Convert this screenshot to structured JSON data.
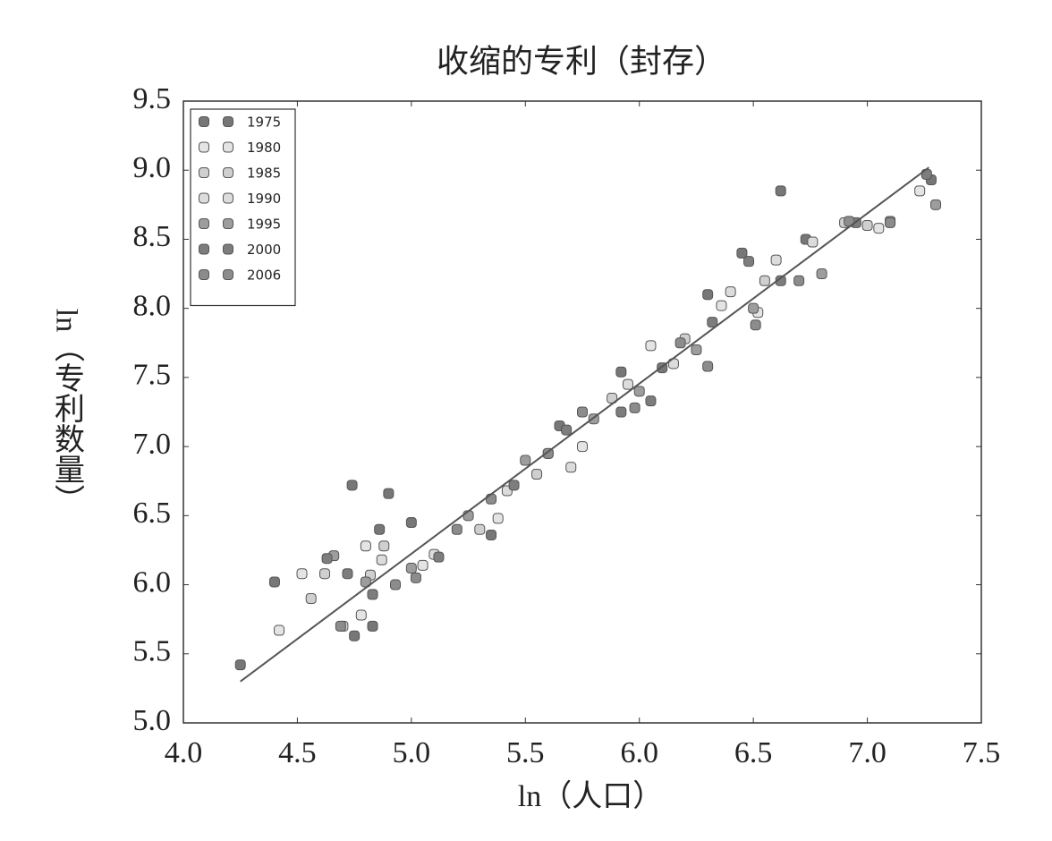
{
  "chart_data": {
    "type": "scatter",
    "title": "收缩的专利（封存）",
    "x_label": "ln（人口）",
    "y_label": "ln（专利数量）",
    "xlim": [
      4.0,
      7.5
    ],
    "ylim": [
      5.0,
      9.5
    ],
    "xticks": [
      {
        "value": 4.0,
        "label": "4.0"
      },
      {
        "value": 4.5,
        "label": "4.5"
      },
      {
        "value": 5.0,
        "label": "5.0"
      },
      {
        "value": 5.5,
        "label": "5.5"
      },
      {
        "value": 6.0,
        "label": "6.0"
      },
      {
        "value": 6.5,
        "label": "6.5"
      },
      {
        "value": 7.0,
        "label": "7.0"
      },
      {
        "value": 7.5,
        "label": "7.5"
      }
    ],
    "yticks": [
      {
        "value": 5.0,
        "label": "5.0"
      },
      {
        "value": 5.5,
        "label": "5.5"
      },
      {
        "value": 6.0,
        "label": "6.0"
      },
      {
        "value": 6.5,
        "label": "6.5"
      },
      {
        "value": 7.0,
        "label": "7.0"
      },
      {
        "value": 7.5,
        "label": "7.5"
      },
      {
        "value": 8.0,
        "label": "8.0"
      },
      {
        "value": 8.5,
        "label": "8.5"
      },
      {
        "value": 9.0,
        "label": "9.0"
      },
      {
        "value": 9.5,
        "label": "9.5"
      }
    ],
    "legend": "upper left",
    "fit_line": {
      "color": "#555555",
      "x": [
        4.25,
        7.27
      ],
      "y": [
        5.3,
        9.02
      ]
    },
    "series": [
      {
        "name": "1975",
        "color": "#777777",
        "x": [
          4.25,
          4.4,
          4.74,
          4.9,
          4.86,
          5.0,
          4.75,
          4.83,
          5.35,
          5.65,
          5.92,
          6.1,
          6.45,
          6.62,
          6.73,
          7.28,
          6.3
        ],
        "values": [
          5.42,
          6.02,
          6.72,
          6.66,
          6.4,
          6.45,
          5.63,
          5.7,
          6.36,
          7.15,
          7.54,
          7.57,
          8.4,
          8.85,
          8.5,
          8.93,
          8.1
        ]
      },
      {
        "name": "1980",
        "color": "#e4e4e4",
        "x": [
          4.42,
          4.52,
          4.78,
          4.8,
          5.05,
          5.38,
          5.6,
          5.75,
          6.05,
          6.36,
          6.52,
          7.05,
          7.23
        ],
        "values": [
          5.67,
          6.08,
          5.78,
          6.28,
          6.14,
          6.48,
          6.95,
          7.0,
          7.73,
          8.02,
          7.97,
          8.58,
          8.85
        ]
      },
      {
        "name": "1985",
        "color": "#cfcfcf",
        "x": [
          4.56,
          4.62,
          4.82,
          4.88,
          5.3,
          5.55,
          5.88,
          6.2,
          6.55,
          6.9,
          7.0
        ],
        "values": [
          5.9,
          6.08,
          6.07,
          6.28,
          6.4,
          6.8,
          7.35,
          7.78,
          8.2,
          8.62,
          8.6
        ]
      },
      {
        "name": "1990",
        "color": "#dcdcdc",
        "x": [
          4.7,
          4.87,
          5.1,
          5.42,
          5.7,
          5.95,
          6.15,
          6.4,
          6.6,
          6.76
        ],
        "values": [
          5.7,
          6.18,
          6.22,
          6.68,
          6.85,
          7.45,
          7.6,
          8.12,
          8.35,
          8.48
        ]
      },
      {
        "name": "1995",
        "color": "#9d9d9d",
        "x": [
          4.66,
          4.8,
          5.0,
          5.25,
          5.5,
          5.8,
          6.0,
          6.25,
          6.5,
          6.8,
          7.1,
          7.3
        ],
        "values": [
          6.21,
          6.02,
          6.12,
          6.5,
          6.9,
          7.2,
          7.4,
          7.7,
          8.0,
          8.25,
          8.63,
          8.75
        ]
      },
      {
        "name": "2000",
        "color": "#7d7d7d",
        "x": [
          4.63,
          4.72,
          4.83,
          5.12,
          5.45,
          5.68,
          5.92,
          6.05,
          6.32,
          6.48,
          6.62,
          6.95,
          7.26
        ],
        "values": [
          6.19,
          6.08,
          5.93,
          6.2,
          6.72,
          7.12,
          7.25,
          7.33,
          7.9,
          8.34,
          8.2,
          8.62,
          8.97
        ]
      },
      {
        "name": "2006",
        "color": "#8c8c8c",
        "x": [
          4.69,
          4.93,
          5.02,
          5.2,
          5.35,
          5.6,
          5.75,
          5.98,
          6.18,
          6.3,
          6.51,
          6.7,
          6.92,
          7.1
        ],
        "values": [
          5.7,
          6.0,
          6.05,
          6.4,
          6.62,
          6.95,
          7.25,
          7.28,
          7.75,
          7.58,
          7.88,
          8.2,
          8.63,
          8.62
        ]
      }
    ]
  }
}
